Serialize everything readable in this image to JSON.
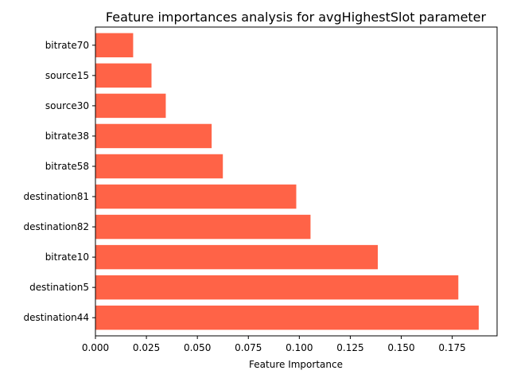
{
  "chart_data": {
    "type": "bar",
    "orientation": "horizontal",
    "title": "Feature importances analysis for avgHighestSlot parameter",
    "xlabel": "Feature Importance",
    "ylabel": "",
    "categories": [
      "bitrate70",
      "source15",
      "source30",
      "bitrate38",
      "bitrate58",
      "destination81",
      "destination82",
      "bitrate10",
      "destination5",
      "destination44"
    ],
    "values": [
      0.0185,
      0.0275,
      0.0345,
      0.057,
      0.0625,
      0.0985,
      0.1055,
      0.1385,
      0.178,
      0.188
    ],
    "xlim": [
      0,
      0.197
    ],
    "xticks": [
      0.0,
      0.025,
      0.05,
      0.075,
      0.1,
      0.125,
      0.15,
      0.175
    ],
    "xtick_labels": [
      "0.000",
      "0.025",
      "0.050",
      "0.075",
      "0.100",
      "0.125",
      "0.150",
      "0.175"
    ],
    "bar_color": "#ff6347",
    "grid": false,
    "legend": "none"
  }
}
